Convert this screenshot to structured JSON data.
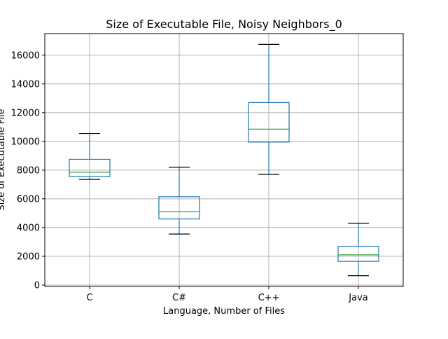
{
  "chart_data": {
    "type": "box",
    "title": "Size of Executable File, Noisy Neighbors_0",
    "xlabel": "Language, Number of Files",
    "ylabel": "Size of Executable File",
    "ylim": [
      -100,
      17500
    ],
    "yticks": [
      0,
      2000,
      4000,
      6000,
      8000,
      10000,
      12000,
      14000,
      16000
    ],
    "ytick_labels": [
      "0",
      "2000",
      "4000",
      "6000",
      "8000",
      "10000",
      "12000",
      "14000",
      "16000"
    ],
    "grid": true,
    "categories": [
      "C",
      "C#",
      "C++",
      "Java"
    ],
    "boxes": [
      {
        "label": "C",
        "whisker_low": 7350,
        "q1": 7550,
        "median": 7850,
        "q3": 8750,
        "whisker_high": 10550
      },
      {
        "label": "C#",
        "whisker_low": 3550,
        "q1": 4600,
        "median": 5100,
        "q3": 6150,
        "whisker_high": 8200
      },
      {
        "label": "C++",
        "whisker_low": 7700,
        "q1": 9950,
        "median": 10850,
        "q3": 12700,
        "whisker_high": 16750
      },
      {
        "label": "Java",
        "whisker_low": 650,
        "q1": 1650,
        "median": 2100,
        "q3": 2700,
        "whisker_high": 4300
      }
    ],
    "colors": {
      "box": "#1f77b4",
      "median": "#2ca02c",
      "cap": "#000000",
      "grid": "#b0b0b0",
      "axes": "#000000"
    }
  }
}
